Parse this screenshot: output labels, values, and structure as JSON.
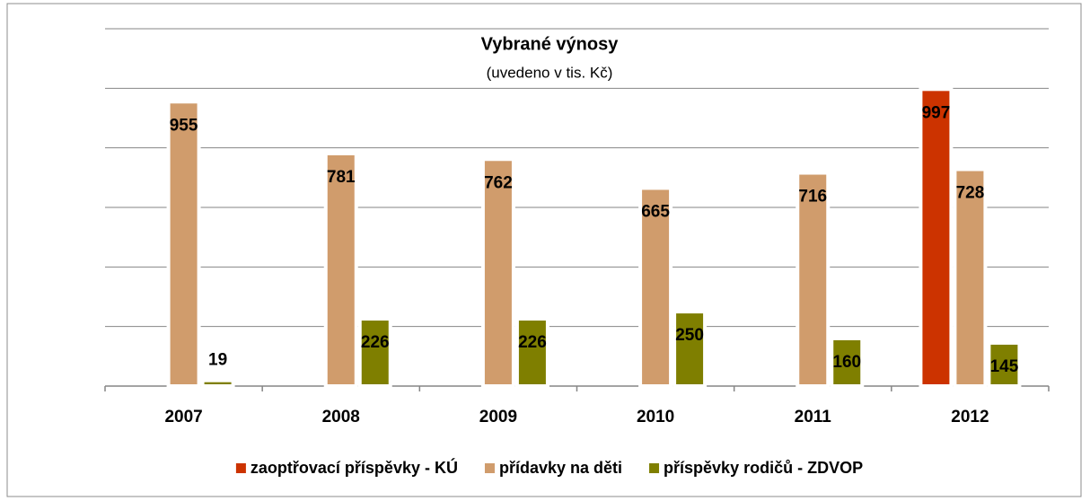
{
  "chart_data": {
    "type": "bar",
    "title": "Vybrané výnosy",
    "subtitle": "(uvedeno v tis. Kč)",
    "categories": [
      "2007",
      "2008",
      "2009",
      "2010",
      "2011",
      "2012"
    ],
    "series": [
      {
        "name": "zaoptřovací příspěvky - KÚ",
        "color": "#cc3300",
        "values": [
          null,
          null,
          null,
          null,
          null,
          997
        ]
      },
      {
        "name": "přídavky na děti",
        "color": "#d09c6c",
        "values": [
          955,
          781,
          762,
          665,
          716,
          728
        ]
      },
      {
        "name": "příspěvky rodičů  - ZDVOP",
        "color": "#7f7f00",
        "values": [
          19,
          226,
          226,
          250,
          160,
          145
        ]
      }
    ],
    "ylim": [
      0,
      1200
    ],
    "yticks": [
      0,
      200,
      400,
      600,
      800,
      1000,
      1200
    ],
    "grid": true,
    "legend": "bottom"
  }
}
